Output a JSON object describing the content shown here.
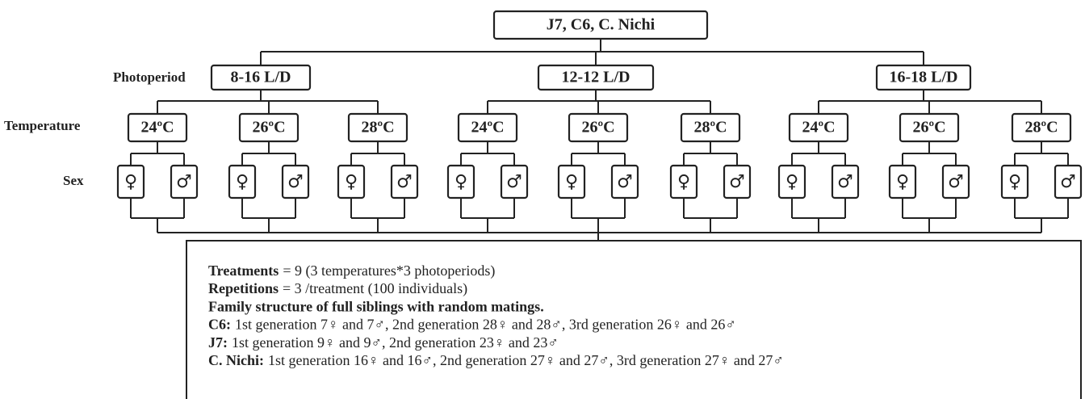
{
  "root": "J7, C6, C. Nichi",
  "row_labels": {
    "photoperiod": "Photoperiod",
    "temperature": "Temperature",
    "sex": "Sex"
  },
  "photoperiods": [
    {
      "label": "8-16 L/D",
      "temperatures": [
        "24ºC",
        "26ºC",
        "28ºC"
      ]
    },
    {
      "label": "12-12 L/D",
      "temperatures": [
        "24ºC",
        "26ºC",
        "28ºC"
      ]
    },
    {
      "label": "16-18 L/D",
      "temperatures": [
        "24ºC",
        "26ºC",
        "28ºC"
      ]
    }
  ],
  "sexes": [
    "♀",
    "♂"
  ],
  "notes": [
    {
      "term": "Treatments",
      "text": "= 9 (3 temperatures*3 photoperiods)"
    },
    {
      "term": "Repetitions",
      "text": "= 3 /treatment (100 individuals)"
    },
    {
      "term": "Family structure of full siblings with random matings."
    },
    {
      "term": "C6:",
      "text": "1st generation 7♀ and 7♂, 2nd generation 28♀ and 28♂, 3rd generation 26♀ and 26♂"
    },
    {
      "term": "J7:",
      "text": "1st generation 9♀ and 9♂, 2nd generation 23♀ and 23♂"
    },
    {
      "term": "C. Nichi:",
      "text": "1st generation 16♀ and 16♂, 2nd generation 27♀ and 27♂, 3rd generation 27♀ and 27♂"
    }
  ]
}
